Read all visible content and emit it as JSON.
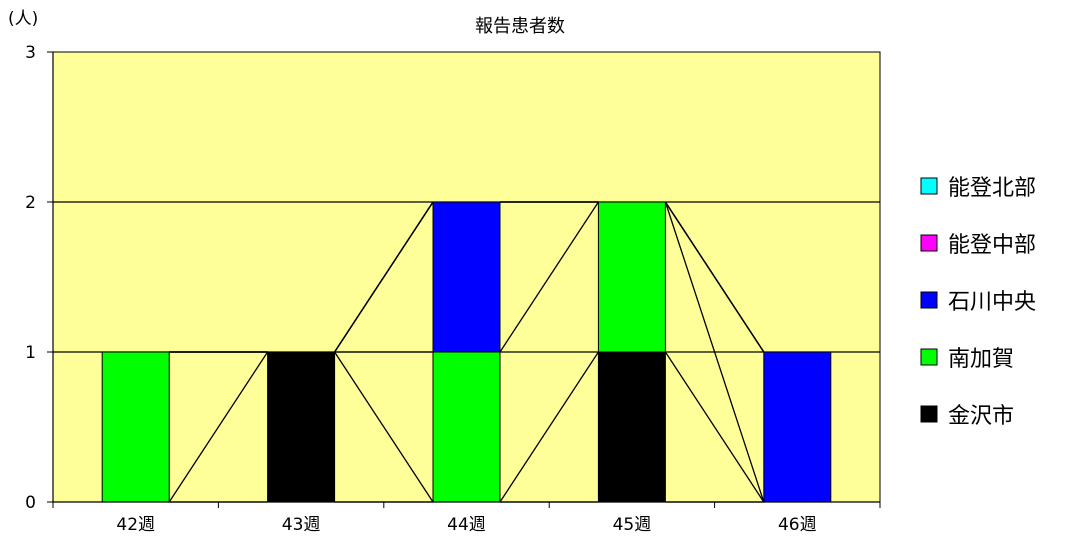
{
  "chart_data": {
    "type": "bar",
    "stacked": true,
    "title": "報告患者数",
    "ylabel": "(人)",
    "xlabel": "",
    "categories": [
      "42週",
      "43週",
      "44週",
      "45週",
      "46週"
    ],
    "ylim": [
      0,
      3
    ],
    "yticks": [
      "0",
      "1",
      "2",
      "3"
    ],
    "grid": true,
    "legend_position": "right",
    "plot_background": "#FFFF99",
    "series": [
      {
        "name": "金沢市",
        "color": "#000000",
        "values": [
          0,
          1,
          0,
          1,
          0
        ]
      },
      {
        "name": "南加賀",
        "color": "#00FF00",
        "values": [
          1,
          0,
          1,
          1,
          0
        ]
      },
      {
        "name": "石川中央",
        "color": "#0000FF",
        "values": [
          0,
          0,
          1,
          0,
          1
        ]
      },
      {
        "name": "能登中部",
        "color": "#FF00FF",
        "values": [
          0,
          0,
          0,
          0,
          0
        ]
      },
      {
        "name": "能登北部",
        "color": "#00FFFF",
        "values": [
          0,
          0,
          0,
          0,
          0
        ]
      }
    ],
    "legend_order": [
      "能登北部",
      "能登中部",
      "石川中央",
      "南加賀",
      "金沢市"
    ]
  }
}
